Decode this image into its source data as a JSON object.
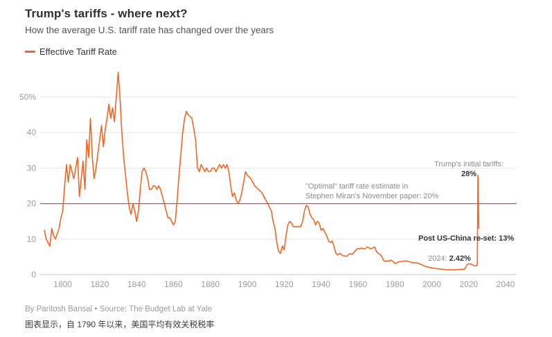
{
  "header": {
    "title": "Trump's tariffs - where next?",
    "subtitle": "How the average U.S. tariff rate has changed over the years"
  },
  "legend": {
    "label": "Effective Tariff Rate"
  },
  "colors": {
    "line": "#F26522",
    "reference": "#DB4453",
    "grid": "#E6E6E6",
    "axis_line": "#C8C8C8",
    "axis_text": "#9B9B9B",
    "title_text": "#2F2F2F",
    "dark_text": "#333333",
    "muted_text": "#8C8C8C"
  },
  "chart_data": {
    "type": "line",
    "title": "Trump's tariffs - where next?",
    "subtitle": "How the average U.S. tariff rate has changed over the years",
    "xlabel": "",
    "ylabel": "",
    "xlim": [
      1788,
      2045
    ],
    "ylim": [
      0,
      57.5
    ],
    "grid": true,
    "legend_position": "top-left",
    "x_ticks": [
      1800,
      1820,
      1840,
      1860,
      1880,
      1900,
      1920,
      1940,
      1960,
      1980,
      2000,
      2020,
      2040
    ],
    "y_ticks": [
      0,
      10,
      20,
      30,
      40,
      50
    ],
    "y_tick_labels": [
      "0",
      "10",
      "20",
      "30",
      "40",
      "50%"
    ],
    "reference_line": {
      "value": 20,
      "label_line1": "\"Optimal\" tariff rate estimate in",
      "label_line2": "Stephen Miran's November paper: 20%"
    },
    "annotations": {
      "trump_initial": {
        "line1": "Trump's initial tariffs:",
        "line2": "28%"
      },
      "post_reset": {
        "text": "Post US-China re-set: 13%"
      },
      "y2024": {
        "prefix": "2024:",
        "value": "2.42%"
      }
    },
    "series": [
      {
        "name": "Effective Tariff Rate",
        "points": [
          [
            1790,
            12.5
          ],
          [
            1791,
            10
          ],
          [
            1792,
            9
          ],
          [
            1793,
            8
          ],
          [
            1794,
            13
          ],
          [
            1795,
            11
          ],
          [
            1796,
            10
          ],
          [
            1797,
            11.5
          ],
          [
            1798,
            13
          ],
          [
            1799,
            16
          ],
          [
            1800,
            18
          ],
          [
            1801,
            25
          ],
          [
            1802,
            31
          ],
          [
            1803,
            26
          ],
          [
            1804,
            31
          ],
          [
            1805,
            29
          ],
          [
            1806,
            27
          ],
          [
            1807,
            30
          ],
          [
            1808,
            33
          ],
          [
            1809,
            22
          ],
          [
            1810,
            27
          ],
          [
            1811,
            32
          ],
          [
            1812,
            24
          ],
          [
            1813,
            38
          ],
          [
            1814,
            33
          ],
          [
            1815,
            44
          ],
          [
            1816,
            33
          ],
          [
            1817,
            27
          ],
          [
            1818,
            30
          ],
          [
            1819,
            34
          ],
          [
            1820,
            38
          ],
          [
            1821,
            42
          ],
          [
            1822,
            36
          ],
          [
            1823,
            41
          ],
          [
            1824,
            44
          ],
          [
            1825,
            48
          ],
          [
            1826,
            44
          ],
          [
            1827,
            47
          ],
          [
            1828,
            43
          ],
          [
            1829,
            50
          ],
          [
            1830,
            57
          ],
          [
            1831,
            50
          ],
          [
            1832,
            40
          ],
          [
            1833,
            33
          ],
          [
            1834,
            28
          ],
          [
            1835,
            23
          ],
          [
            1836,
            19
          ],
          [
            1837,
            17
          ],
          [
            1838,
            20
          ],
          [
            1839,
            18
          ],
          [
            1840,
            15
          ],
          [
            1841,
            18
          ],
          [
            1842,
            24
          ],
          [
            1843,
            29
          ],
          [
            1844,
            30
          ],
          [
            1845,
            29
          ],
          [
            1846,
            27
          ],
          [
            1847,
            24
          ],
          [
            1848,
            24
          ],
          [
            1849,
            25
          ],
          [
            1850,
            25
          ],
          [
            1851,
            24
          ],
          [
            1852,
            25
          ],
          [
            1853,
            24
          ],
          [
            1854,
            22
          ],
          [
            1855,
            20
          ],
          [
            1856,
            18
          ],
          [
            1857,
            16
          ],
          [
            1858,
            16
          ],
          [
            1859,
            15
          ],
          [
            1860,
            14
          ],
          [
            1861,
            15
          ],
          [
            1862,
            21
          ],
          [
            1863,
            28
          ],
          [
            1864,
            34
          ],
          [
            1865,
            40
          ],
          [
            1866,
            44
          ],
          [
            1867,
            46
          ],
          [
            1868,
            45
          ],
          [
            1869,
            44.5
          ],
          [
            1870,
            44
          ],
          [
            1871,
            41
          ],
          [
            1872,
            38
          ],
          [
            1873,
            30
          ],
          [
            1874,
            29
          ],
          [
            1875,
            31
          ],
          [
            1876,
            30
          ],
          [
            1877,
            29
          ],
          [
            1878,
            30
          ],
          [
            1879,
            29
          ],
          [
            1880,
            29
          ],
          [
            1881,
            30
          ],
          [
            1882,
            30
          ],
          [
            1883,
            29
          ],
          [
            1884,
            30
          ],
          [
            1885,
            31
          ],
          [
            1886,
            30
          ],
          [
            1887,
            31
          ],
          [
            1888,
            30
          ],
          [
            1889,
            31
          ],
          [
            1890,
            29
          ],
          [
            1891,
            25
          ],
          [
            1892,
            22
          ],
          [
            1893,
            23
          ],
          [
            1894,
            21
          ],
          [
            1895,
            20
          ],
          [
            1896,
            21
          ],
          [
            1897,
            23
          ],
          [
            1898,
            26
          ],
          [
            1899,
            29
          ],
          [
            1900,
            28
          ],
          [
            1902,
            27
          ],
          [
            1904,
            25
          ],
          [
            1906,
            24
          ],
          [
            1908,
            23
          ],
          [
            1910,
            21
          ],
          [
            1912,
            19
          ],
          [
            1913,
            18
          ],
          [
            1914,
            15
          ],
          [
            1915,
            13
          ],
          [
            1916,
            9
          ],
          [
            1917,
            6.5
          ],
          [
            1918,
            6
          ],
          [
            1919,
            8
          ],
          [
            1920,
            7
          ],
          [
            1921,
            11
          ],
          [
            1922,
            14
          ],
          [
            1923,
            15
          ],
          [
            1924,
            14.5
          ],
          [
            1925,
            13.5
          ],
          [
            1927,
            13.5
          ],
          [
            1929,
            13.5
          ],
          [
            1930,
            15
          ],
          [
            1931,
            18
          ],
          [
            1932,
            19.5
          ],
          [
            1933,
            19
          ],
          [
            1934,
            17
          ],
          [
            1935,
            16
          ],
          [
            1936,
            15.5
          ],
          [
            1937,
            14
          ],
          [
            1938,
            15
          ],
          [
            1939,
            14.5
          ],
          [
            1940,
            12.5
          ],
          [
            1941,
            13
          ],
          [
            1942,
            12
          ],
          [
            1943,
            11
          ],
          [
            1944,
            9.5
          ],
          [
            1945,
            9
          ],
          [
            1946,
            9.5
          ],
          [
            1947,
            8
          ],
          [
            1948,
            6
          ],
          [
            1949,
            5.5
          ],
          [
            1950,
            6
          ],
          [
            1952,
            5.3
          ],
          [
            1954,
            5.2
          ],
          [
            1955,
            5.7
          ],
          [
            1956,
            5.9
          ],
          [
            1957,
            5.7
          ],
          [
            1958,
            6.4
          ],
          [
            1959,
            7
          ],
          [
            1960,
            7.4
          ],
          [
            1961,
            7.2
          ],
          [
            1962,
            7.5
          ],
          [
            1963,
            7.2
          ],
          [
            1964,
            7.3
          ],
          [
            1965,
            7.8
          ],
          [
            1966,
            7.5
          ],
          [
            1967,
            7.2
          ],
          [
            1968,
            7.5
          ],
          [
            1969,
            7.8
          ],
          [
            1970,
            6.5
          ],
          [
            1971,
            6
          ],
          [
            1972,
            5.7
          ],
          [
            1973,
            5
          ],
          [
            1974,
            3.9
          ],
          [
            1975,
            3.7
          ],
          [
            1976,
            3.9
          ],
          [
            1977,
            3.8
          ],
          [
            1978,
            4.1
          ],
          [
            1979,
            3.7
          ],
          [
            1980,
            3.1
          ],
          [
            1982,
            3.6
          ],
          [
            1984,
            3.7
          ],
          [
            1985,
            3.8
          ],
          [
            1986,
            3.9
          ],
          [
            1988,
            3.6
          ],
          [
            1990,
            3.3
          ],
          [
            1992,
            3.3
          ],
          [
            1994,
            2.9
          ],
          [
            1996,
            2.4
          ],
          [
            1998,
            2.1
          ],
          [
            2000,
            1.9
          ],
          [
            2002,
            1.7
          ],
          [
            2004,
            1.6
          ],
          [
            2006,
            1.5
          ],
          [
            2008,
            1.3
          ],
          [
            2010,
            1.4
          ],
          [
            2012,
            1.3
          ],
          [
            2014,
            1.4
          ],
          [
            2016,
            1.5
          ],
          [
            2017,
            1.4
          ],
          [
            2018,
            1.7
          ],
          [
            2019,
            2.8
          ],
          [
            2020,
            3
          ],
          [
            2021,
            3
          ],
          [
            2022,
            2.8
          ],
          [
            2023,
            2.5
          ],
          [
            2024,
            2.42
          ],
          [
            2024.7,
            2.6
          ],
          [
            2025,
            28
          ],
          [
            2025.5,
            13
          ]
        ]
      }
    ]
  },
  "footer": {
    "byline": "By Paritosh Bansal • Source: The Budget Lab at Yale",
    "caption_zh": "图表显示，自 1790 年以来，美国平均有效关税税率"
  }
}
